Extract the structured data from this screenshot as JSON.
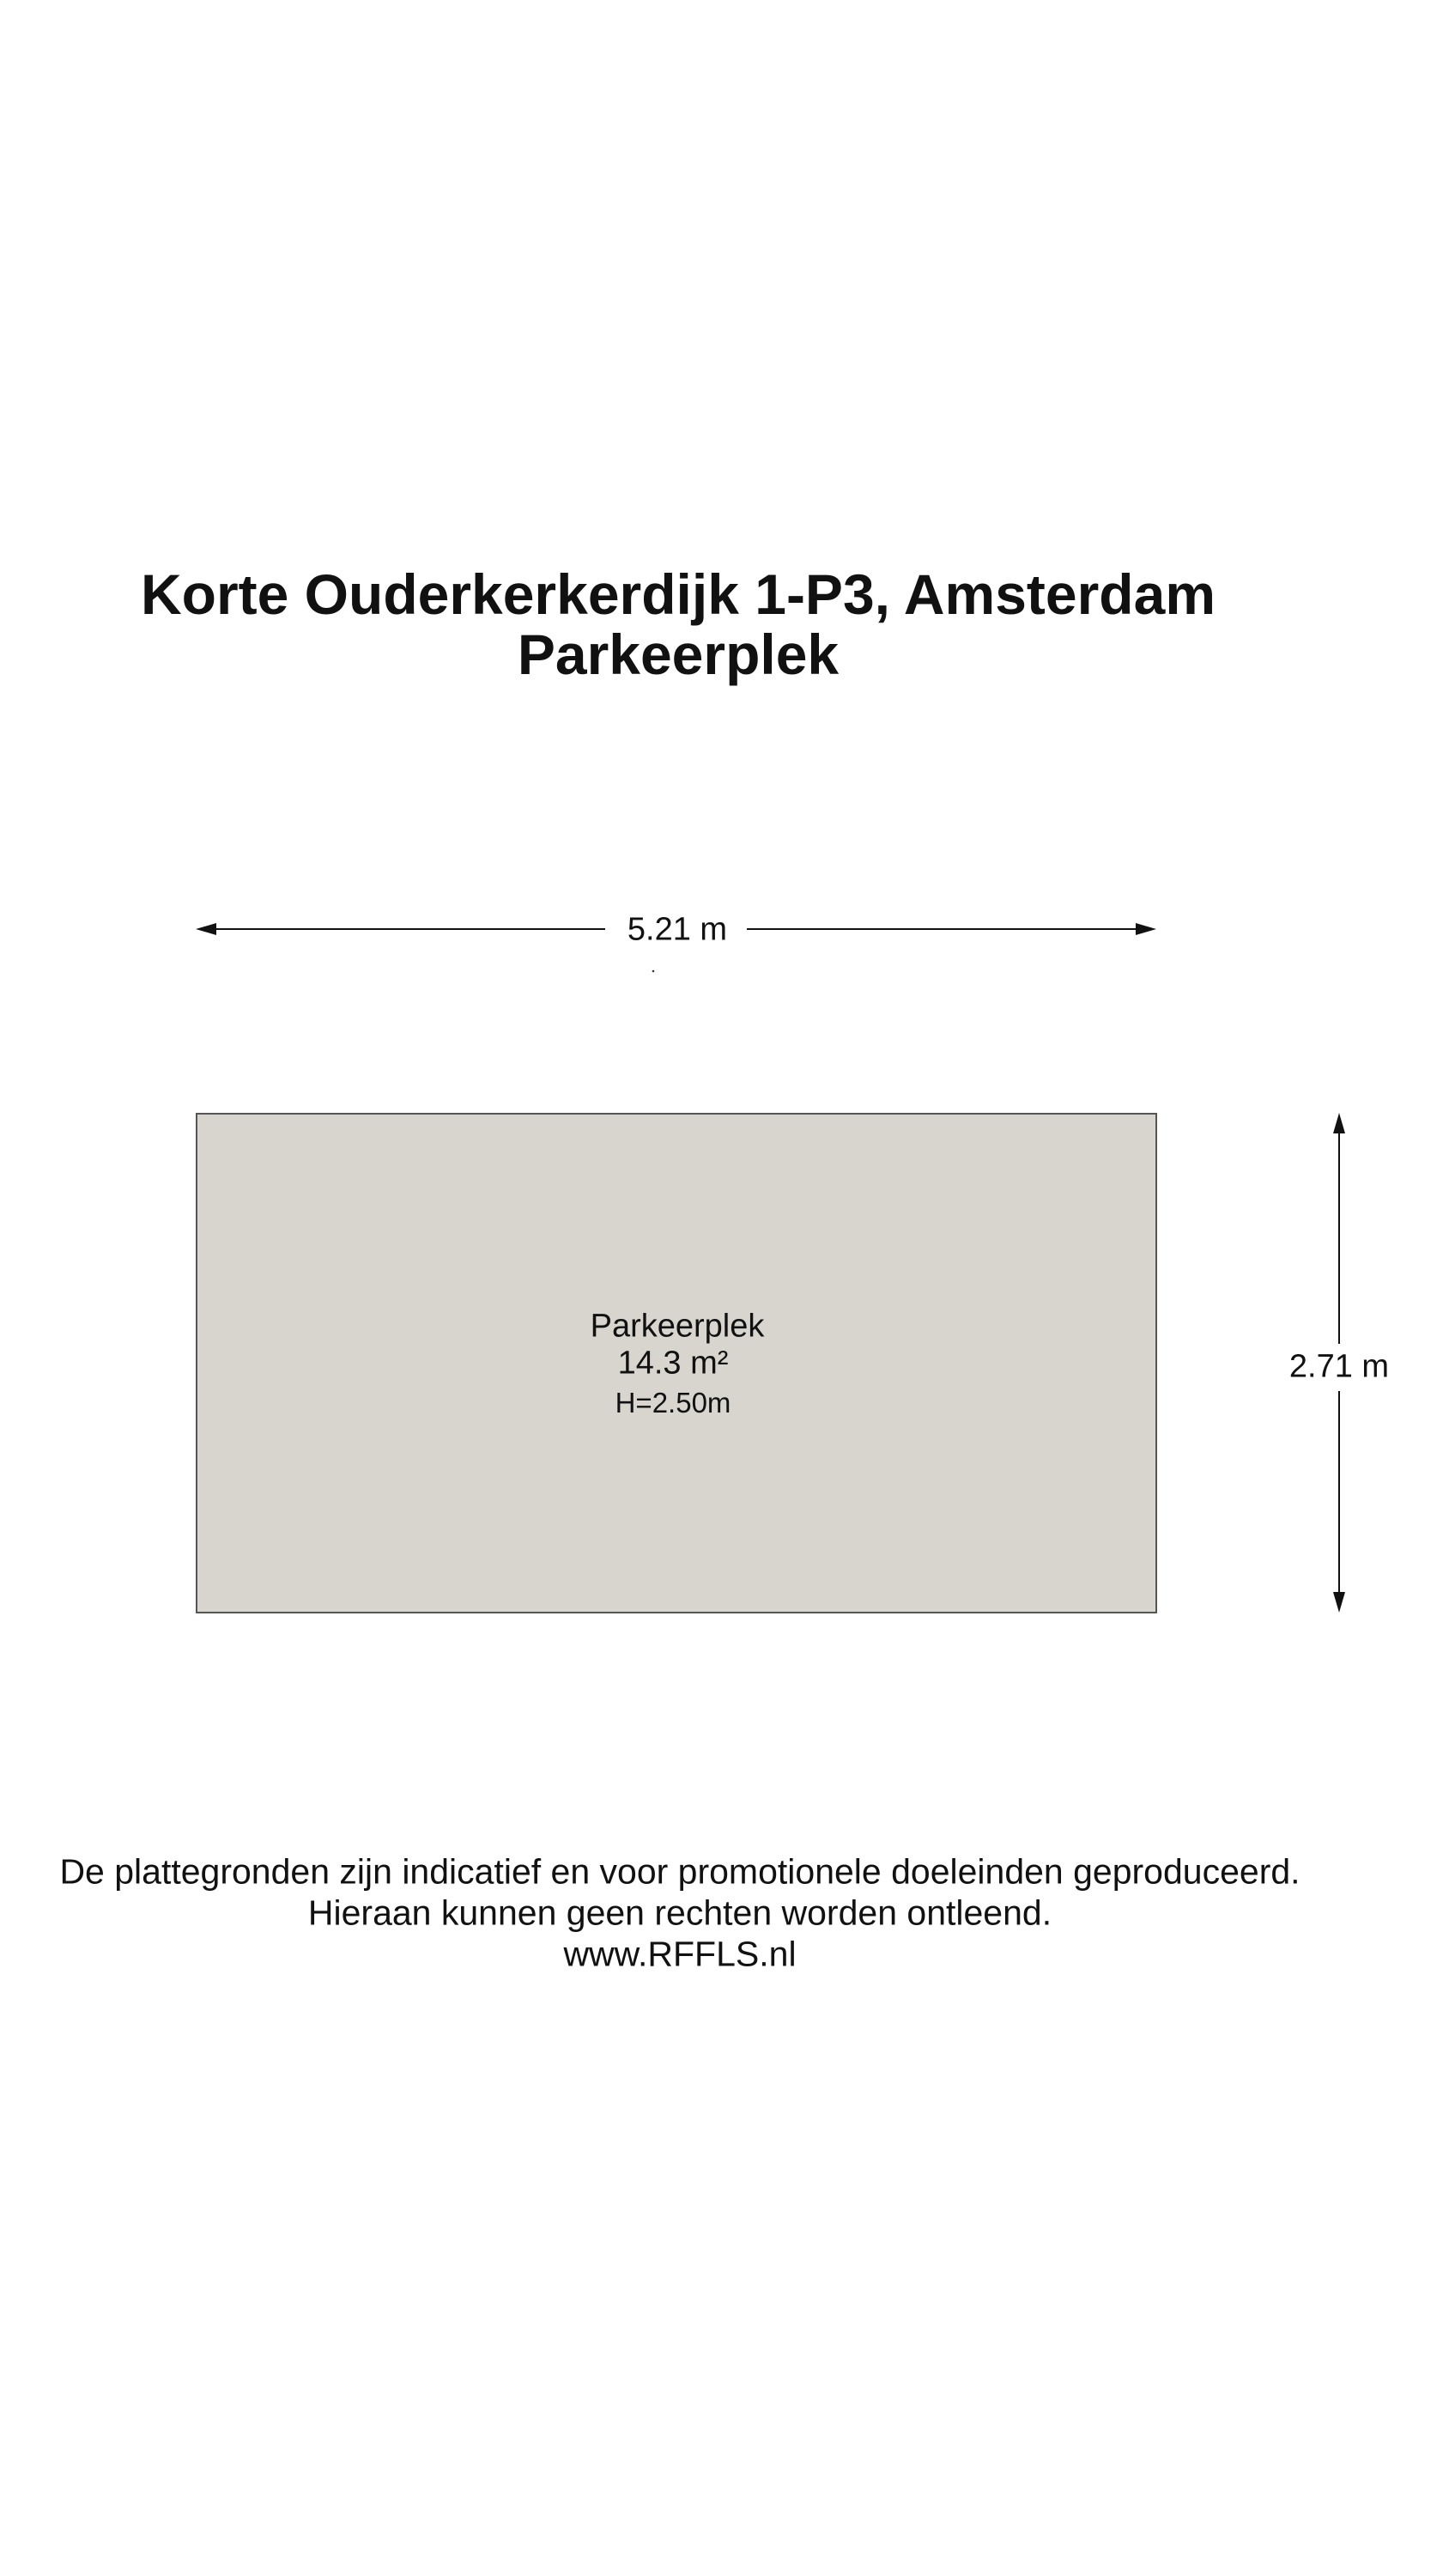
{
  "header": {
    "address": "Korte Ouderkerkerdijk 1-P3, Amsterdam",
    "subtitle": "Parkeerplek"
  },
  "floorplan": {
    "width_dimension": "5.21 m",
    "height_dimension": "2.71 m",
    "room": {
      "name": "Parkeerplek",
      "area": "14.3 m²",
      "height": "H=2.50m",
      "fill_color": "#d7d5ce"
    }
  },
  "footer": {
    "disclaimer_line1": "De plattegronden zijn indicatief en voor promotionele doeleinden geproduceerd.",
    "disclaimer_line2": "Hieraan kunnen geen rechten worden ontleend.",
    "website": "www.RFFLS.nl"
  }
}
